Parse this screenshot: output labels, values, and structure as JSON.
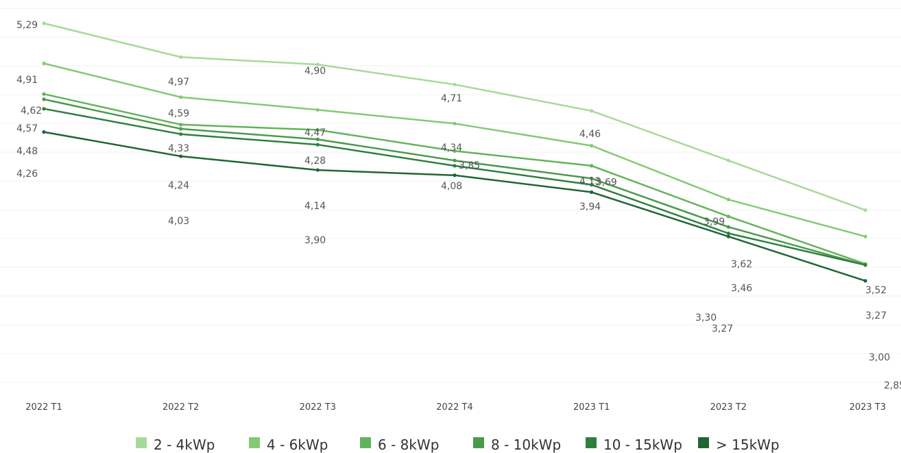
{
  "chart_data": {
    "type": "line",
    "categories": [
      "2022 T1",
      "2022 T2",
      "2022 T3",
      "2022 T4",
      "2023 T1",
      "2023 T2",
      "2023 T3"
    ],
    "ylim": [
      2.8,
      5.4
    ],
    "grid": true,
    "legend_placement": "bottom",
    "series": [
      {
        "name": "2 - 4kWp",
        "color": "#a6d99b",
        "values": [
          5.29,
          4.97,
          4.9,
          4.71,
          4.46,
          3.99,
          3.52
        ],
        "labels": [
          "5,29",
          "4,97",
          "4,90",
          "4,71",
          "4,46",
          "3,99",
          "3,52"
        ]
      },
      {
        "name": "4 - 6kWp",
        "color": "#84c974",
        "values": [
          4.91,
          4.59,
          4.47,
          4.34,
          4.13,
          3.62,
          3.27
        ],
        "labels": [
          "4,91",
          "4,59",
          "4,47",
          "4,34",
          "4,13",
          "3,62",
          "3,27"
        ]
      },
      {
        "name": "6 - 8kWp",
        "color": "#63b35a",
        "values": [
          4.62,
          4.33,
          4.28,
          4.08,
          3.94,
          3.46,
          3.01
        ],
        "labels": [
          "4,62",
          "4,33",
          "4,28",
          "4,08",
          "3,94",
          "3,46",
          null
        ]
      },
      {
        "name": "8 - 10kWp",
        "color": "#4a9a4c",
        "values": [
          4.57,
          4.29,
          4.19,
          3.99,
          3.82,
          3.36,
          3.0
        ],
        "labels": [
          "4,57",
          null,
          null,
          null,
          null,
          null,
          null
        ]
      },
      {
        "name": "10 - 15kWp",
        "color": "#2f7f3f",
        "values": [
          4.48,
          4.24,
          4.14,
          3.94,
          3.76,
          3.3,
          3.0
        ],
        "labels": [
          "4,48",
          "4,24",
          "4,14",
          null,
          null,
          "3,30",
          "3,00"
        ]
      },
      {
        "name": "> 15kWp",
        "color": "#1f6634",
        "values": [
          4.26,
          4.03,
          3.9,
          3.85,
          3.69,
          3.27,
          2.85
        ],
        "labels": [
          "4,26",
          "4,03",
          "3,90",
          "3,85",
          "3,69",
          "3,27",
          "2,85"
        ]
      }
    ]
  }
}
